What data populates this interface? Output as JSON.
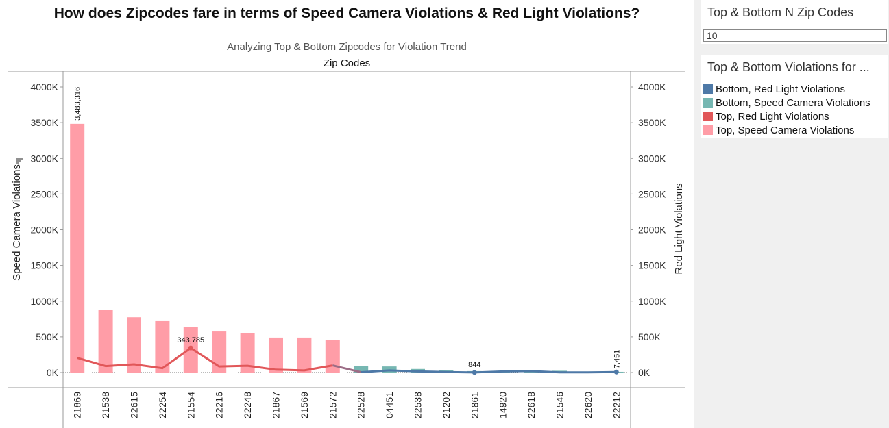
{
  "title": "How does Zipcodes fare in terms of Speed Camera Violations & Red Light Violations?",
  "subtitle": "Analyzing Top & Bottom Zipcodes for Violation Trend",
  "x_header": "Zip Codes",
  "filter": {
    "title": "Top & Bottom N Zip Codes",
    "value": "10"
  },
  "legend": {
    "title": "Top & Bottom Violations  for ...",
    "items": [
      {
        "label": "Bottom, Red Light Violations",
        "color": "#4e79a7"
      },
      {
        "label": "Bottom, Speed Camera Violations",
        "color": "#76b7b2"
      },
      {
        "label": "Top, Red Light Violations",
        "color": "#e15759"
      },
      {
        "label": "Top, Speed Camera Violations",
        "color": "#ff9da7"
      }
    ]
  },
  "chart_data": {
    "type": "bar",
    "categories": [
      "21869",
      "21538",
      "22615",
      "22254",
      "21554",
      "22216",
      "22248",
      "21867",
      "21569",
      "21572",
      "22528",
      "04451",
      "22538",
      "21202",
      "21861",
      "14920",
      "22618",
      "21546",
      "22620",
      "22212"
    ],
    "groups": [
      "Top",
      "Top",
      "Top",
      "Top",
      "Top",
      "Top",
      "Top",
      "Top",
      "Top",
      "Top",
      "Bottom",
      "Bottom",
      "Bottom",
      "Bottom",
      "Bottom",
      "Bottom",
      "Bottom",
      "Bottom",
      "Bottom",
      "Bottom"
    ],
    "series": [
      {
        "name": "Speed Camera Violations",
        "type": "bar",
        "values": [
          3483316,
          880000,
          775000,
          720000,
          640000,
          575000,
          555000,
          490000,
          490000,
          460000,
          90000,
          85000,
          50000,
          35000,
          20000,
          12000,
          15000,
          25000,
          8000,
          10000
        ]
      },
      {
        "name": "Red Light Violations",
        "type": "line",
        "values": [
          205000,
          90000,
          115000,
          60000,
          343785,
          85000,
          95000,
          40000,
          30000,
          100000,
          5000,
          30000,
          15000,
          8000,
          844,
          15000,
          20000,
          3000,
          2000,
          7451
        ]
      }
    ],
    "data_labels": [
      {
        "series": "Speed Camera Violations",
        "category": "21869",
        "text": "3,483,316",
        "orientation": "vertical"
      },
      {
        "series": "Red Light Violations",
        "category": "21554",
        "text": "343,785",
        "orientation": "horizontal"
      },
      {
        "series": "Red Light Violations",
        "category": "21861",
        "text": "844",
        "orientation": "horizontal"
      },
      {
        "series": "Red Light Violations",
        "category": "22212",
        "text": "7,451",
        "orientation": "vertical"
      }
    ],
    "y_left": {
      "label": "Speed Camera Violations",
      "ticks": [
        "0K",
        "500K",
        "1000K",
        "1500K",
        "2000K",
        "2500K",
        "3000K",
        "3500K",
        "4000K"
      ],
      "ylim": [
        0,
        4000000
      ]
    },
    "y_right": {
      "label": "Red Light Violations",
      "ticks": [
        "0K",
        "500K",
        "1000K",
        "1500K",
        "2000K",
        "2500K",
        "3000K",
        "3500K",
        "4000K"
      ],
      "ylim": [
        0,
        4000000
      ]
    },
    "colors": {
      "top_bar": "#ff9da7",
      "top_line": "#e15759",
      "bottom_bar": "#76b7b2",
      "bottom_line": "#4e79a7"
    }
  }
}
